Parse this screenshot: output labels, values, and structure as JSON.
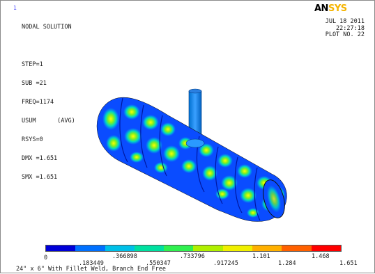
{
  "window_number": "1",
  "logo": {
    "part1": "AN",
    "part2": "SYS"
  },
  "info_lines": [
    "NODAL SOLUTION",
    "",
    "STEP=1",
    "SUB =21",
    "FREQ=1174",
    "USUM      (AVG)",
    "RSYS=0",
    "DMX =1.651",
    "SMX =1.651"
  ],
  "date": "JUL 18 2011",
  "time": "22:27:18",
  "plot_no": "PLOT NO.  22",
  "legend": {
    "colors": [
      "#0000d8",
      "#0070ff",
      "#00c0e8",
      "#00e0a0",
      "#30f050",
      "#b0f000",
      "#f0f000",
      "#ffb000",
      "#ff6000",
      "#ff0000"
    ],
    "bottom_labels": [
      "0",
      ".183449",
      ".366898",
      ".550347",
      ".733796",
      ".917245",
      "1.101",
      "1.284",
      "1.468",
      "1.651"
    ]
  },
  "caption": "24\" x 6\" With Fillet Weld, Branch End Free"
}
